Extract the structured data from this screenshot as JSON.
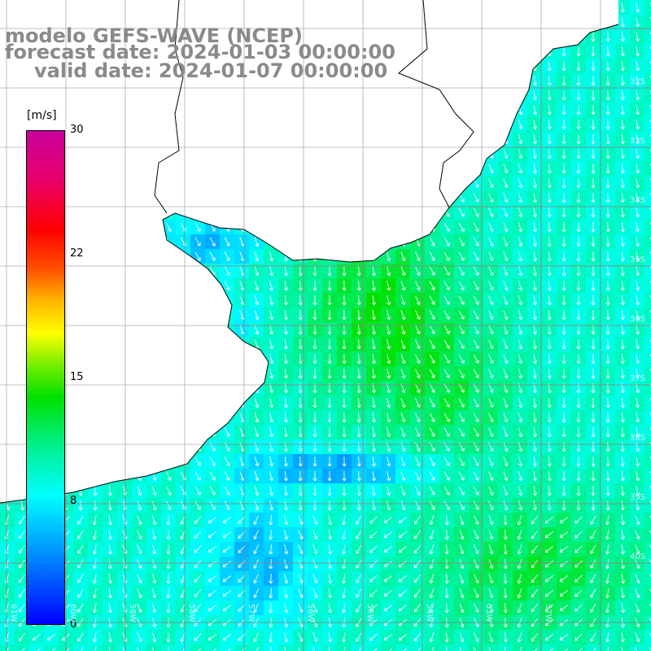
{
  "title": {
    "line1": "modelo GEFS-WAVE (NCEP)",
    "line2": "forecast date: 2024-01-03 00:00:00",
    "line3": "valid date: 2024-01-07 00:00:00"
  },
  "colorbar": {
    "unit": "[m/s]",
    "ticks": [
      "30",
      "22",
      "15",
      "8",
      "0"
    ],
    "tick_values": [
      30,
      22,
      15,
      8,
      0
    ],
    "range": [
      0,
      30
    ],
    "colors": [
      "#0000ff",
      "#00ffff",
      "#00e000",
      "#ffff00",
      "#ff0000",
      "#c8009c"
    ]
  },
  "lat_labels": [
    "32S",
    "33S",
    "34S",
    "35S",
    "36S",
    "37S",
    "38S",
    "39S",
    "40S"
  ],
  "lon_labels": [
    "61W",
    "60W",
    "59W",
    "58W",
    "57W",
    "56W",
    "55W",
    "54W",
    "53W",
    "52W"
  ],
  "colors": {
    "land": "#ffffff",
    "coast": "#000000",
    "grid": "#888888",
    "arrow": "#ffffff",
    "title": "#8a8a8a"
  }
}
